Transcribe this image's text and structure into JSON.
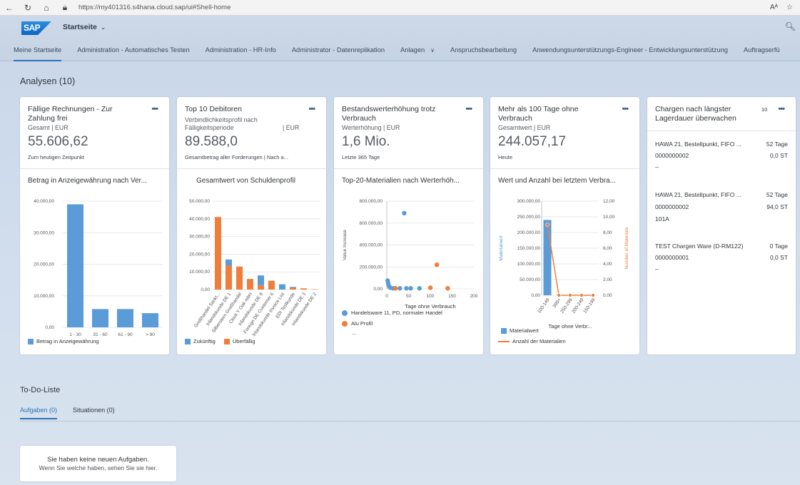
{
  "browser": {
    "url": "https://my401316.s4hana.cloud.sap/ui#Shell-home",
    "back_icon": "back-arrow-icon",
    "reload_icon": "reload-icon",
    "home_icon": "home-icon",
    "read_aloud_label": "Aᴬ",
    "favorite_icon": "star-icon"
  },
  "shell": {
    "logo": "SAP",
    "title": "Startseite",
    "search_icon": "search-icon"
  },
  "tabs": [
    {
      "label": "Meine Startseite",
      "active": true
    },
    {
      "label": "Administration - Automatisches Testen"
    },
    {
      "label": "Administration - HR-Info"
    },
    {
      "label": "Administrator - Datenreplikation"
    },
    {
      "label": "Anlagen"
    },
    {
      "label": "Anspruchsbearbeitung"
    },
    {
      "label": "Anwendungsunterstützungs-Engineer - Entwicklungsunterstützung"
    },
    {
      "label": "Auftragserfü"
    }
  ],
  "section": {
    "title": "Analysen (10)"
  },
  "cards": {
    "c1": {
      "title": "Fällige Rechnungen - Zur Zahlung frei",
      "subtitle": "Gesamt | EUR",
      "kpi": "55.606,62",
      "footer": "Zum heutigen Zeitpunkt",
      "chart_title": "Betrag in Anzeigewährung nach Ver..."
    },
    "c2": {
      "title": "Top 10 Debitoren",
      "subtitle1": "Verbindlichkeitsprofil nach",
      "subtitle2": "Fälligkeitsperiode",
      "unit": "| EUR",
      "kpi": "89.588,0",
      "footer": "Gesamtbetrag aller Forderungen | Nach a...",
      "chart_title": "Gesamtwert von Schuldenprofil"
    },
    "c3": {
      "title": "Bestandswerterhöhung trotz Verbrauch",
      "subtitle": "Werterhöhung | EUR",
      "kpi": "1,6 Mio.",
      "kpi_unit": "Mio.",
      "footer": "Letzte 365 Tage",
      "chart_title": "Top-20-Materialien nach Werterhöh..."
    },
    "c4": {
      "title": "Mehr als 100 Tage ohne Verbrauch",
      "subtitle": "Gesamtwert | EUR",
      "kpi": "244.057,17",
      "footer": "Heute",
      "chart_title": "Wert und Anzahl bei letztem Verbra..."
    },
    "c5": {
      "title": "Chargen nach längster Lagerdauer überwachen",
      "count": "10",
      "items": [
        {
          "name": "HAWA 21, Bestellpunkt, FIFO ...",
          "days": "52 Tage",
          "id": "0000000002",
          "qty": "0,0 ST",
          "extra": "–"
        },
        {
          "name": "HAWA 21, Bestellpunkt, FIFO ...",
          "days": "52 Tage",
          "id": "0000000002",
          "qty": "94,0 ST",
          "extra": "101A"
        },
        {
          "name": "TEST Chargen Ware (D-RM122)",
          "days": "0 Tage",
          "id": "0000000001",
          "qty": "0,0 ST",
          "extra": "–"
        }
      ]
    }
  },
  "chart_data": [
    {
      "type": "bar",
      "categories": [
        "1 - 30",
        "31 - 60",
        "61 - 90",
        "> 90"
      ],
      "values": [
        39000,
        5800,
        5800,
        4500
      ],
      "yticks": [
        "40.000,00",
        "30.000,00",
        "20.000,00",
        "10.000,00",
        "0,00"
      ],
      "ylim": [
        0,
        40000
      ],
      "legend": [
        "Betrag in Anzeigewährung"
      ],
      "colors": [
        "#5a9bd8"
      ]
    },
    {
      "type": "bar",
      "stacked": true,
      "categories": [
        "Großhandel Sankt...",
        "Inlandskunde DE 1",
        "Silberstern Großhandel",
        "Clock Y Oak mbH",
        "Inlandskunde DE 8",
        "Foreign DE Customer 6",
        "Inlandskunde Invoice List",
        "EDI Testkunde",
        "Inlandskunde DE 3",
        "Inlandskunde DE 2"
      ],
      "series": [
        {
          "name": "Zukünftig",
          "values": [
            0,
            3500,
            0,
            0,
            5500,
            0,
            3000,
            500,
            0,
            0
          ]
        },
        {
          "name": "Überfällig",
          "values": [
            41000,
            13500,
            13000,
            6000,
            2500,
            5000,
            0,
            1000,
            700,
            200
          ]
        }
      ],
      "yticks": [
        "50.000,00",
        "40.000,00",
        "30.000,00",
        "20.000,00",
        "10.000,00",
        "0,00"
      ],
      "ylim": [
        0,
        50000
      ],
      "legend": [
        "Zukünftig",
        "Überfällig"
      ],
      "colors": [
        "#5a9bd8",
        "#f07d3a"
      ]
    },
    {
      "type": "scatter",
      "xlabel": "Tage ohne Verbrauch",
      "ylabel": "Value Increase",
      "xlim": [
        0,
        200
      ],
      "ylim": [
        0,
        800000
      ],
      "xticks": [
        "0",
        "50",
        "100",
        "150",
        "200"
      ],
      "yticks": [
        "800.000,00",
        "600.000,00",
        "400.000,00",
        "200.000,00",
        "0,00"
      ],
      "series": [
        {
          "name": "Handelsware 11, PD, normaler Handel",
          "points": [
            [
              40,
              690000
            ],
            [
              2,
              75000
            ],
            [
              3,
              55000
            ],
            [
              4,
              35000
            ],
            [
              6,
              20000
            ],
            [
              8,
              10000
            ],
            [
              15,
              5000
            ],
            [
              30,
              5000
            ],
            [
              45,
              5000
            ],
            [
              55,
              5000
            ],
            [
              75,
              5000
            ]
          ]
        },
        {
          "name": "Alu Profil",
          "points": [
            [
              115,
              220000
            ],
            [
              100,
              10000
            ],
            [
              140,
              5000
            ],
            [
              20,
              5000
            ]
          ]
        }
      ],
      "legend": [
        "Handelsware 11, PD, normaler Handel",
        "Alu Profil"
      ],
      "legend_more": "...",
      "colors": [
        "#5a9bd8",
        "#f07d3a"
      ]
    },
    {
      "type": "bar+line",
      "categories": [
        "100-149",
        "300+",
        "250-299",
        "200-249",
        "150-199"
      ],
      "xlabel": "Tage ohne Verbr...",
      "ylabel_left": "Materialwert",
      "ylabel_right": "Number of Materials",
      "bar_values": [
        240000,
        0,
        0,
        0,
        0
      ],
      "line_values": [
        9,
        0,
        0,
        0,
        0
      ],
      "ylim_left": [
        0,
        300000
      ],
      "ylim_right": [
        0,
        12
      ],
      "yticks_left": [
        "300.000,00",
        "250.000,00",
        "200.000,00",
        "150.000,00",
        "100.000,00",
        "50.000,00",
        "0,00"
      ],
      "yticks_right": [
        "12,00",
        "10,00",
        "8,00",
        "6,00",
        "4,00",
        "2,00",
        "0,00"
      ],
      "legend": [
        "Materialwert",
        "Anzahl der Materialien"
      ],
      "colors": [
        "#5a9bd8",
        "#f07d3a"
      ]
    }
  ],
  "todo": {
    "title": "To-Do-Liste",
    "tabs": [
      "Aufgaben (0)",
      "Situationen (0)"
    ],
    "message": "Sie haben keine neuen Aufgaben.",
    "hint": "Wenn Sie welche haben, sehen Sie sie hier."
  }
}
